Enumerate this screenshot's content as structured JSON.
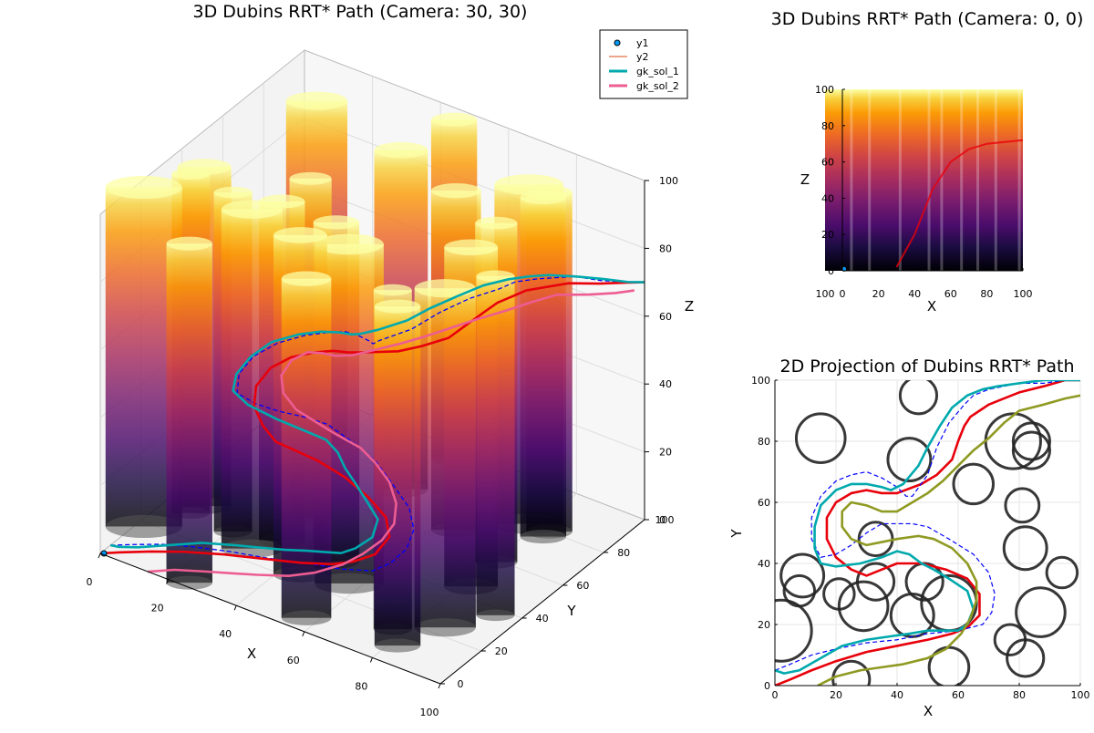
{
  "chart_data": [
    {
      "type": "3d-line-with-cylinders",
      "title": "3D Dubins RRT* Path (Camera: 30, 30)",
      "xlabel": "X",
      "ylabel": "Y",
      "zlabel": "Z",
      "xlim": [
        0,
        100
      ],
      "ylim": [
        0,
        100
      ],
      "zlim": [
        0,
        100
      ],
      "xticks": [
        "0",
        "20",
        "40",
        "60",
        "80",
        "100"
      ],
      "yticks": [
        "0",
        "20",
        "40",
        "60",
        "80",
        "100"
      ],
      "zticks": [
        "0",
        "20",
        "40",
        "60",
        "80",
        "100"
      ],
      "colormap": "inferno",
      "legend_position": "top-right",
      "legend": [
        {
          "label": "y1",
          "kind": "marker",
          "color": "#009af9"
        },
        {
          "label": "y2",
          "kind": "line",
          "color": "#e26f46"
        },
        {
          "label": "gk_sol_1",
          "kind": "line",
          "color": "#00a9ad"
        },
        {
          "label": "gk_sol_2",
          "kind": "line",
          "color": "#ed5d92"
        }
      ],
      "series_colors": {
        "red": "#e8000b",
        "dashed": "#0000ff",
        "cyan": "#00a9ad",
        "pink": "#ed5d92"
      }
    },
    {
      "type": "3d-projection",
      "title": "3D Dubins RRT* Path (Camera: 0, 0)",
      "xlabel": "X",
      "zlabel": "Z",
      "xlim": [
        0,
        100
      ],
      "zlim": [
        0,
        100
      ],
      "xticks": [
        "0",
        "20",
        "40",
        "60",
        "80",
        "100"
      ],
      "zticks": [
        "0",
        "20",
        "40",
        "60",
        "80",
        "100"
      ],
      "extra_tick_text": "100"
    },
    {
      "type": "line",
      "title": "2D Projection of Dubins RRT* Path",
      "xlabel": "X",
      "ylabel": "Y",
      "xlim": [
        0,
        100
      ],
      "ylim": [
        0,
        100
      ],
      "xticks": [
        "0",
        "20",
        "40",
        "60",
        "80",
        "100"
      ],
      "yticks": [
        "0",
        "20",
        "40",
        "60",
        "80",
        "100"
      ],
      "grid": true,
      "obstacles": [
        {
          "x": 15,
          "y": 81,
          "r": 8
        },
        {
          "x": 47,
          "y": 95,
          "r": 6
        },
        {
          "x": 44,
          "y": 74,
          "r": 7
        },
        {
          "x": 65,
          "y": 66,
          "r": 6.5
        },
        {
          "x": 78,
          "y": 80,
          "r": 9
        },
        {
          "x": 84,
          "y": 77,
          "r": 6
        },
        {
          "x": 84,
          "y": 80,
          "r": 6
        },
        {
          "x": 81,
          "y": 59,
          "r": 5.5
        },
        {
          "x": 82,
          "y": 45,
          "r": 7
        },
        {
          "x": 94,
          "y": 37,
          "r": 5
        },
        {
          "x": 87,
          "y": 24,
          "r": 8
        },
        {
          "x": 77,
          "y": 15,
          "r": 5
        },
        {
          "x": 82,
          "y": 9,
          "r": 6
        },
        {
          "x": 57,
          "y": 6,
          "r": 6.5
        },
        {
          "x": 25,
          "y": 2,
          "r": 6
        },
        {
          "x": 2,
          "y": 18,
          "r": 10
        },
        {
          "x": 9,
          "y": 36,
          "r": 7
        },
        {
          "x": 8,
          "y": 31,
          "r": 5
        },
        {
          "x": 21,
          "y": 30,
          "r": 5
        },
        {
          "x": 29,
          "y": 26,
          "r": 8
        },
        {
          "x": 33,
          "y": 34,
          "r": 6
        },
        {
          "x": 33,
          "y": 48,
          "r": 5.5
        },
        {
          "x": 45,
          "y": 23,
          "r": 7
        },
        {
          "x": 49,
          "y": 34,
          "r": 6
        },
        {
          "x": 57,
          "y": 27,
          "r": 9
        }
      ],
      "series": [
        {
          "color": "#e8000b",
          "style": "solid",
          "x": [
            0,
            5,
            12,
            20,
            30,
            40,
            50,
            58,
            63,
            67,
            67,
            63,
            56,
            48,
            40,
            35,
            30,
            25,
            20,
            17,
            17,
            20,
            25,
            30,
            35,
            40,
            48,
            53,
            58,
            60,
            62,
            64,
            67,
            70,
            75,
            80,
            88,
            95,
            100
          ],
          "y": [
            0,
            2,
            5,
            8,
            11,
            13,
            15,
            17,
            19,
            23,
            30,
            35,
            38,
            40,
            40,
            38,
            36,
            38,
            42,
            48,
            55,
            60,
            63,
            64,
            63,
            63,
            66,
            69,
            74,
            80,
            85,
            88,
            90,
            92,
            94,
            96,
            98,
            100,
            100
          ]
        },
        {
          "color": "#0000ff",
          "style": "dashed",
          "x": [
            0,
            5,
            12,
            20,
            30,
            40,
            50,
            60,
            68,
            71,
            72,
            70,
            65,
            57,
            50,
            45,
            40,
            35,
            30,
            25,
            20,
            15,
            12,
            12,
            15,
            20,
            25,
            30,
            35,
            40,
            43,
            45,
            50,
            53,
            57,
            62,
            65,
            70,
            75,
            80,
            88,
            95,
            100
          ],
          "y": [
            5,
            7,
            10,
            12,
            14,
            15,
            17,
            18,
            20,
            24,
            30,
            37,
            43,
            48,
            52,
            53,
            53,
            53,
            50,
            46,
            43,
            42,
            48,
            55,
            62,
            67,
            69,
            70,
            68,
            65,
            62,
            62,
            69,
            78,
            86,
            92,
            95,
            97,
            98,
            99,
            99,
            100,
            100
          ]
        },
        {
          "color": "#00a9ad",
          "style": "solid",
          "x": [
            0,
            3,
            8,
            15,
            22,
            30,
            37,
            44,
            50,
            55,
            60,
            63,
            65,
            63,
            57,
            52,
            48,
            44,
            40,
            35,
            28,
            20,
            15,
            13,
            13,
            15,
            20,
            25,
            30,
            35,
            38,
            42,
            47,
            50,
            54,
            58,
            63,
            68,
            73,
            80,
            88,
            95,
            100
          ],
          "y": [
            5,
            4,
            5,
            9,
            13,
            15,
            16,
            17,
            18,
            18,
            18,
            20,
            25,
            31,
            35,
            38,
            40,
            43,
            44,
            42,
            40,
            39,
            40,
            45,
            52,
            59,
            64,
            66,
            66,
            65,
            64,
            66,
            72,
            78,
            85,
            91,
            95,
            97,
            98,
            99,
            100,
            100,
            100
          ]
        },
        {
          "color": "#8f9a22",
          "style": "solid",
          "x": [
            14,
            20,
            28,
            35,
            42,
            50,
            56,
            61,
            64,
            66,
            66,
            63,
            58,
            52,
            47,
            40,
            35,
            30,
            25,
            22,
            22,
            25,
            30,
            35,
            40,
            45,
            50,
            55,
            60,
            65,
            70,
            75,
            80,
            88,
            95,
            100
          ],
          "y": [
            0,
            3,
            5,
            6,
            7,
            9,
            12,
            17,
            22,
            28,
            34,
            40,
            45,
            48,
            49,
            48,
            47,
            46,
            48,
            52,
            57,
            60,
            59,
            57,
            57,
            60,
            63,
            67,
            72,
            77,
            81,
            86,
            90,
            92,
            94,
            95
          ]
        }
      ]
    }
  ]
}
